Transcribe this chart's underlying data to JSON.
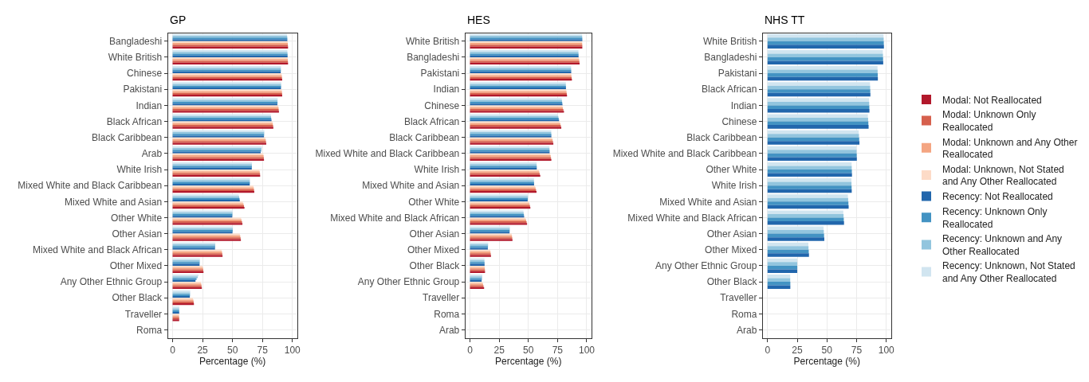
{
  "chart_data": [
    {
      "type": "bar",
      "orientation": "horizontal",
      "title": "GP",
      "xlabel": "Percentage (%)",
      "xlim": [
        -4,
        104
      ],
      "xticks": [
        0,
        25,
        50,
        75,
        100
      ],
      "grid": true,
      "legend": "right",
      "categories": [
        "Bangladeshi",
        "White British",
        "Chinese",
        "Pakistani",
        "Indian",
        "Black African",
        "Black Caribbean",
        "Arab",
        "White Irish",
        "Mixed White and Black Caribbean",
        "Mixed White and Asian",
        "Other White",
        "Other Asian",
        "Mixed White and Black African",
        "Other Mixed",
        "Any Other Ethnic Group",
        "Other Black",
        "Traveller",
        "Roma"
      ],
      "series": [
        {
          "name": "Modal: Not Reallocated",
          "color": "#b2182b",
          "values": [
            96.4,
            96.4,
            91.5,
            91.5,
            88.8,
            84.1,
            78.2,
            76.3,
            73.1,
            68.2,
            60.0,
            58.3,
            57.0,
            41.7,
            25.8,
            24.4,
            17.8,
            5.5,
            null
          ]
        },
        {
          "name": "Modal: Unknown Only Reallocated",
          "color": "#d6604d",
          "values": [
            96.3,
            96.3,
            91.3,
            91.4,
            88.6,
            83.9,
            78.0,
            76.2,
            73.0,
            68.0,
            59.6,
            58.0,
            56.8,
            41.5,
            25.6,
            24.2,
            17.6,
            5.5,
            null
          ]
        },
        {
          "name": "Modal: Unknown and Any Other Reallocated",
          "color": "#f4a582",
          "values": [
            96.2,
            96.2,
            91.2,
            91.3,
            88.5,
            83.7,
            77.8,
            76.0,
            72.8,
            67.8,
            59.2,
            57.6,
            56.5,
            41.3,
            25.4,
            24.0,
            17.4,
            5.4,
            null
          ]
        },
        {
          "name": "Modal: Unknown, Not Stated and Any Other Reallocated",
          "color": "#fddbc7",
          "values": [
            96.1,
            96.1,
            91.0,
            91.2,
            88.3,
            83.5,
            77.5,
            75.8,
            72.6,
            67.5,
            58.7,
            57.2,
            56.2,
            41.0,
            25.0,
            23.6,
            17.0,
            5.4,
            null
          ]
        },
        {
          "name": "Recency: Not Reallocated",
          "color": "#2166ac",
          "values": [
            95.8,
            96.0,
            90.3,
            90.5,
            87.5,
            82.6,
            76.3,
            73.5,
            66.1,
            64.4,
            56.1,
            49.8,
            50.0,
            35.4,
            22.5,
            19.1,
            14.4,
            5.5,
            null
          ]
        },
        {
          "name": "Recency: Unknown Only Reallocated",
          "color": "#4393c3",
          "values": [
            95.8,
            96.0,
            90.4,
            90.6,
            87.6,
            82.4,
            76.4,
            74.0,
            66.2,
            64.5,
            55.9,
            49.9,
            50.2,
            35.5,
            22.6,
            20.0,
            14.5,
            5.5,
            null
          ]
        },
        {
          "name": "Recency: Unknown and Any Other Reallocated",
          "color": "#92c5de",
          "values": [
            95.7,
            95.9,
            90.4,
            90.6,
            87.6,
            82.2,
            76.5,
            74.3,
            66.2,
            64.5,
            55.6,
            50.0,
            50.3,
            35.6,
            22.7,
            21.0,
            14.6,
            5.5,
            null
          ]
        },
        {
          "name": "Recency: Unknown, Not Stated and Any Other Reallocated",
          "color": "#d1e5f0",
          "values": [
            95.5,
            95.8,
            90.5,
            90.7,
            87.7,
            82.0,
            76.6,
            74.6,
            66.3,
            64.6,
            55.3,
            50.1,
            50.4,
            35.7,
            22.8,
            21.6,
            14.7,
            5.6,
            null
          ]
        }
      ]
    },
    {
      "type": "bar",
      "orientation": "horizontal",
      "title": "HES",
      "xlabel": "Percentage (%)",
      "xlim": [
        -4,
        104
      ],
      "xticks": [
        0,
        25,
        50,
        75,
        100
      ],
      "grid": true,
      "categories": [
        "White British",
        "Bangladeshi",
        "Pakistani",
        "Indian",
        "Chinese",
        "Black African",
        "Black Caribbean",
        "Mixed White and Black Caribbean",
        "White Irish",
        "Mixed White and Asian",
        "Other White",
        "Mixed White and Black African",
        "Other Asian",
        "Other Mixed",
        "Other Black",
        "Any Other Ethnic Group",
        "Traveller",
        "Roma",
        "Arab"
      ],
      "series": [
        {
          "color": "#b2182b",
          "values": [
            96.2,
            93.9,
            87.3,
            83.1,
            80.5,
            78.2,
            71.4,
            69.7,
            60.2,
            57.0,
            51.7,
            48.9,
            36.4,
            18.0,
            12.9,
            12.1,
            null,
            null,
            null
          ]
        },
        {
          "color": "#d6604d",
          "values": [
            96.2,
            93.7,
            87.1,
            82.9,
            80.0,
            77.8,
            71.1,
            69.4,
            59.8,
            56.6,
            51.4,
            48.5,
            36.2,
            17.8,
            12.8,
            11.6,
            null,
            null,
            null
          ]
        },
        {
          "color": "#f4a582",
          "values": [
            96.1,
            93.5,
            86.9,
            82.7,
            79.6,
            77.4,
            70.8,
            69.1,
            59.4,
            56.2,
            51.1,
            48.1,
            36.0,
            17.6,
            12.7,
            11.2,
            null,
            null,
            null
          ]
        },
        {
          "color": "#fddbc7",
          "values": [
            96.1,
            93.3,
            86.8,
            82.5,
            79.2,
            77.0,
            70.5,
            68.8,
            59.0,
            55.8,
            50.8,
            47.7,
            35.8,
            17.4,
            12.6,
            10.8,
            null,
            null,
            null
          ]
        },
        {
          "color": "#2166ac",
          "values": [
            96.2,
            93.0,
            86.7,
            82.2,
            79.2,
            76.3,
            69.7,
            68.2,
            57.2,
            54.9,
            49.4,
            46.4,
            33.9,
            15.3,
            12.5,
            10.0,
            null,
            null,
            null
          ]
        },
        {
          "color": "#4393c3",
          "values": [
            96.2,
            93.0,
            86.7,
            82.2,
            79.0,
            76.0,
            69.7,
            68.2,
            57.2,
            54.9,
            49.5,
            46.2,
            34.0,
            15.4,
            12.5,
            10.2,
            null,
            null,
            null
          ]
        },
        {
          "color": "#92c5de",
          "values": [
            96.1,
            92.9,
            86.6,
            82.1,
            78.8,
            75.7,
            69.6,
            68.1,
            57.1,
            54.8,
            49.6,
            46.0,
            34.1,
            15.5,
            12.4,
            10.4,
            null,
            null,
            null
          ]
        },
        {
          "color": "#d1e5f0",
          "values": [
            96.1,
            92.9,
            86.6,
            82.1,
            78.6,
            75.4,
            69.6,
            68.1,
            57.1,
            54.8,
            49.7,
            45.8,
            34.2,
            15.6,
            12.4,
            10.6,
            null,
            null,
            null
          ]
        }
      ]
    },
    {
      "type": "bar",
      "orientation": "horizontal",
      "title": "NHS TT",
      "xlabel": "Percentage (%)",
      "xlim": [
        -4,
        104
      ],
      "xticks": [
        0,
        25,
        50,
        75,
        100
      ],
      "grid": true,
      "categories": [
        "White British",
        "Bangladeshi",
        "Pakistani",
        "Black African",
        "Indian",
        "Chinese",
        "Black Caribbean",
        "Mixed White and Black Caribbean",
        "Other White",
        "White Irish",
        "Mixed White and Asian",
        "Mixed White and Black African",
        "Other Asian",
        "Other Mixed",
        "Any Other Ethnic Group",
        "Other Black",
        "Traveller",
        "Roma",
        "Arab"
      ],
      "series": [
        {
          "color": "#2166ac",
          "values": [
            98.0,
            97.4,
            92.9,
            86.6,
            85.8,
            85.1,
            77.4,
            75.2,
            71.1,
            70.9,
            68.3,
            64.4,
            47.8,
            34.9,
            25.0,
            19.2,
            null,
            null,
            null
          ]
        },
        {
          "color": "#4393c3",
          "values": [
            97.9,
            97.3,
            92.8,
            86.5,
            85.7,
            84.9,
            77.2,
            75.1,
            71.0,
            70.8,
            68.1,
            64.2,
            47.6,
            34.7,
            25.0,
            19.2,
            null,
            null,
            null
          ]
        },
        {
          "color": "#92c5de",
          "values": [
            97.8,
            97.2,
            92.7,
            86.4,
            85.6,
            84.7,
            77.0,
            75.0,
            70.9,
            70.7,
            67.9,
            64.0,
            47.4,
            34.5,
            25.0,
            19.1,
            null,
            null,
            null
          ]
        },
        {
          "color": "#d1e5f0",
          "values": [
            97.7,
            97.1,
            92.6,
            86.3,
            85.5,
            84.5,
            76.8,
            74.9,
            70.8,
            70.6,
            67.7,
            63.8,
            47.2,
            34.4,
            25.0,
            19.1,
            null,
            null,
            null
          ]
        }
      ]
    }
  ]
}
